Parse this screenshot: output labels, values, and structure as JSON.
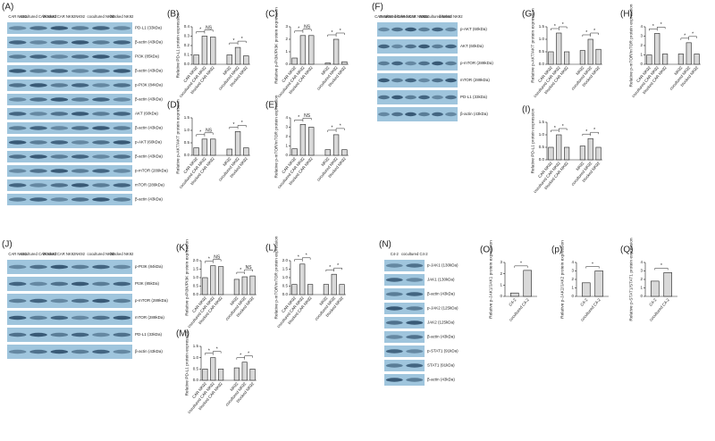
{
  "blots": [
    {
      "panel": "(A)",
      "lanes": [
        "CAR NK92",
        "cocultured CAR NK92",
        "blocked CAR NK92",
        "NK92",
        "cocultured NK92",
        "blocked NK92"
      ],
      "bands": [
        "PD-L1 (33kDa)",
        "β-actin (43kDa)",
        "PI3K (85kDa)",
        "β-actin (43kDa)",
        "p-PI3K (84kDa)",
        "β-actin (43kDa)",
        "AKT (60kDa)",
        "β-actin (43kDa)",
        "p-AKT (60kDa)",
        "β-actin (43kDa)",
        "p-mTOR (289kDa)",
        "mTOR (289kDa)",
        "β-actin (43kDa)"
      ]
    },
    {
      "panel": "(F)",
      "lanes": [
        "CAR NK92",
        "cocultured CAR NK92",
        "blocked CAR NK92",
        "NK92",
        "cocultured NK92",
        "blocked NK92"
      ],
      "bands": [
        "p-AKT (60kDa)",
        "AKT (60kDa)",
        "p-mTOR (289kDa)",
        "mTOR (289kDa)",
        "PD-L1 (33kDa)",
        "β-actin (43kDa)"
      ]
    },
    {
      "panel": "(J)",
      "lanes": [
        "CAR NK92",
        "cocultured CAR NK92",
        "blocked CAR NK92",
        "NK92",
        "cocultured NK92",
        "blocked NK92"
      ],
      "bands": [
        "p-PI3K (84kDa)",
        "PI3K (85kDa)",
        "p-mTOR (289kDa)",
        "mTOR (289kDa)",
        "PD-L1 (33kDa)",
        "β-actin (43kDa)"
      ]
    },
    {
      "panel": "(N)",
      "lanes": [
        "C4-2",
        "cocultured C4-2"
      ],
      "bands": [
        "p-JAK1 (130kDa)",
        "JAK1 (130kDa)",
        "β-actin (43kDa)",
        "p-JAK2 (125kDa)",
        "JAK2 (125kDa)",
        "β-actin (43kDa)",
        "p-STAT1 (91kDa)",
        "STAT1 (91kDa)",
        "β-actin (43kDa)"
      ]
    }
  ],
  "chart_data": [
    {
      "type": "bar",
      "panel": "(B)",
      "ylabel": "Relative PD-L1 protein expression",
      "categories": [
        "CAR NK92",
        "cocultured CAR NK92",
        "blocked CAR NK92",
        "NK92",
        "cocultured NK92",
        "blocked NK92"
      ],
      "values": [
        0.1,
        0.3,
        0.29,
        0.1,
        0.18,
        0.09
      ],
      "color": "#d9d9d9",
      "ylim": [
        0,
        0.4
      ],
      "yticks": [
        {
          "value": 0,
          "label": "0.0"
        },
        0.1,
        0.2,
        0.3,
        0.4
      ],
      "brackets": [
        {
          "text": "*",
          "from": 0,
          "to": 1
        },
        {
          "text": "NS",
          "from": 1,
          "to": 2
        },
        {
          "text": "*",
          "from": 3,
          "to": 4
        },
        {
          "text": "*",
          "from": 4,
          "to": 5
        }
      ]
    },
    {
      "type": "bar",
      "panel": "(C)",
      "ylabel": "Relative p-PI3K/PI3K protein expression",
      "categories": [
        "CAR NK92",
        "cocultured CAR NK92",
        "blocked CAR NK92",
        "NK92",
        "cocultured NK92",
        "blocked NK92"
      ],
      "values": [
        0.5,
        2.3,
        2.3,
        0.1,
        2.0,
        0.2
      ],
      "color": "#d9d9d9",
      "ylim": [
        0,
        3
      ],
      "yticks": [
        0,
        1,
        2,
        3
      ],
      "brackets": [
        {
          "text": "*",
          "from": 0,
          "to": 1
        },
        {
          "text": "NS",
          "from": 1,
          "to": 2
        },
        {
          "text": "*",
          "from": 3,
          "to": 4
        },
        {
          "text": "*",
          "from": 4,
          "to": 5
        }
      ]
    },
    {
      "type": "bar",
      "panel": "(D)",
      "ylabel": "Relative p-AKT/AKT protein expression",
      "categories": [
        "CAR NK92",
        "cocultured CAR NK92",
        "blocked CAR NK92",
        "NK92",
        "cocultured NK92",
        "blocked NK92"
      ],
      "values": [
        0.3,
        0.65,
        0.65,
        0.25,
        0.95,
        0.3
      ],
      "color": "#d9d9d9",
      "ylim": [
        0,
        1.5
      ],
      "yticks": [
        {
          "value": 0,
          "label": "0.0"
        },
        0.5,
        {
          "value": 1,
          "label": "1.0"
        },
        1.5
      ],
      "brackets": [
        {
          "text": "*",
          "from": 0,
          "to": 1
        },
        {
          "text": "NS",
          "from": 1,
          "to": 2
        },
        {
          "text": "*",
          "from": 3,
          "to": 4
        },
        {
          "text": "*",
          "from": 4,
          "to": 5
        }
      ]
    },
    {
      "type": "bar",
      "panel": "(E)",
      "ylabel": "Relative p-mTOR/mTOR protein expression",
      "categories": [
        "CAR NK92",
        "cocultured CAR NK92",
        "blocked CAR NK92",
        "NK92",
        "cocultured NK92",
        "blocked NK92"
      ],
      "values": [
        0.7,
        3.3,
        3.0,
        0.6,
        2.2,
        0.6
      ],
      "color": "#d9d9d9",
      "ylim": [
        0,
        4
      ],
      "yticks": [
        0,
        1,
        2,
        3,
        4
      ],
      "brackets": [
        {
          "text": "*",
          "from": 0,
          "to": 1
        },
        {
          "text": "NS",
          "from": 1,
          "to": 2
        },
        {
          "text": "*",
          "from": 3,
          "to": 4
        },
        {
          "text": "*",
          "from": 4,
          "to": 5
        }
      ]
    },
    {
      "type": "bar",
      "panel": "(G)",
      "ylabel": "Relative p-AKT/AKT protein expression",
      "categories": [
        "CAR NK92",
        "cocultured CAR NK92",
        "blocked CAR NK92",
        "NK92",
        "cocultured NK92",
        "blocked NK92"
      ],
      "values": [
        0.5,
        1.25,
        0.5,
        0.55,
        1.0,
        0.6
      ],
      "color": "#d9d9d9",
      "ylim": [
        0,
        1.5
      ],
      "yticks": [
        {
          "value": 0,
          "label": "0.0"
        },
        0.5,
        {
          "value": 1,
          "label": "1.0"
        },
        1.5
      ],
      "brackets": [
        {
          "text": "*",
          "from": 0,
          "to": 1
        },
        {
          "text": "*",
          "from": 1,
          "to": 2
        },
        {
          "text": "*",
          "from": 3,
          "to": 4
        },
        {
          "text": "*",
          "from": 4,
          "to": 5
        }
      ]
    },
    {
      "type": "bar",
      "panel": "(H)",
      "ylabel": "Relative p-mTOR/mTOR protein expression",
      "categories": [
        "CAR NK92",
        "cocultured CAR NK92",
        "blocked CAR NK92",
        "NK92",
        "cocultured NK92",
        "blocked NK92"
      ],
      "values": [
        1.0,
        3.3,
        1.1,
        1.1,
        2.3,
        1.1
      ],
      "color": "#d9d9d9",
      "ylim": [
        0,
        4
      ],
      "yticks": [
        0,
        1,
        2,
        3,
        4
      ],
      "brackets": [
        {
          "text": "*",
          "from": 0,
          "to": 1
        },
        {
          "text": "*",
          "from": 1,
          "to": 2
        },
        {
          "text": "*",
          "from": 3,
          "to": 4
        },
        {
          "text": "*",
          "from": 4,
          "to": 5
        }
      ]
    },
    {
      "type": "bar",
      "panel": "(I)",
      "ylabel": "Relative PD-L1 protein expression",
      "categories": [
        "CAR NK92",
        "cocultured CAR NK92",
        "blocked CAR NK92",
        "NK92",
        "cocultured NK92",
        "blocked NK92"
      ],
      "values": [
        0.5,
        1.0,
        0.5,
        0.55,
        0.85,
        0.5
      ],
      "color": "#d9d9d9",
      "ylim": [
        0,
        1.5
      ],
      "yticks": [
        {
          "value": 0,
          "label": "0.0"
        },
        0.5,
        {
          "value": 1,
          "label": "1.0"
        },
        1.5
      ],
      "brackets": [
        {
          "text": "*",
          "from": 0,
          "to": 1
        },
        {
          "text": "*",
          "from": 1,
          "to": 2
        },
        {
          "text": "*",
          "from": 3,
          "to": 4
        },
        {
          "text": "*",
          "from": 4,
          "to": 5
        }
      ]
    },
    {
      "type": "bar",
      "panel": "(K)",
      "ylabel": "Relative p-PI3K/PI3K protein expression",
      "categories": [
        "CAR NK92",
        "cocultured CAR NK92",
        "blocked CAR NK92",
        "NK92",
        "cocultured NK92",
        "blocked NK92"
      ],
      "values": [
        1.0,
        1.7,
        1.65,
        0.9,
        1.05,
        1.1
      ],
      "color": "#d9d9d9",
      "ylim": [
        0,
        2
      ],
      "yticks": [
        {
          "value": 0,
          "label": "0.0"
        },
        0.5,
        {
          "value": 1,
          "label": "1.0"
        },
        1.5,
        {
          "value": 2,
          "label": "2.0"
        }
      ],
      "brackets": [
        {
          "text": "*",
          "from": 0,
          "to": 1
        },
        {
          "text": "NS",
          "from": 1,
          "to": 2
        },
        {
          "text": "*",
          "from": 3,
          "to": 4
        },
        {
          "text": "NS",
          "from": 4,
          "to": 5
        }
      ]
    },
    {
      "type": "bar",
      "panel": "(L)",
      "ylabel": "Relative p-mTOR/mTOR protein expression",
      "categories": [
        "CAR NK92",
        "cocultured CAR NK92",
        "blocked CAR NK92",
        "NK92",
        "cocultured NK92",
        "blocked NK92"
      ],
      "values": [
        0.6,
        1.8,
        0.6,
        0.6,
        1.2,
        0.6
      ],
      "color": "#d9d9d9",
      "ylim": [
        0,
        2
      ],
      "yticks": [
        {
          "value": 0,
          "label": "0.0"
        },
        0.5,
        {
          "value": 1,
          "label": "1.0"
        },
        1.5,
        {
          "value": 2,
          "label": "2.0"
        }
      ],
      "brackets": [
        {
          "text": "*",
          "from": 0,
          "to": 1
        },
        {
          "text": "*",
          "from": 1,
          "to": 2
        },
        {
          "text": "*",
          "from": 3,
          "to": 4
        },
        {
          "text": "*",
          "from": 4,
          "to": 5
        }
      ]
    },
    {
      "type": "bar",
      "panel": "(M)",
      "ylabel": "Relative PD-L1 protein expression",
      "categories": [
        "CAR NK92",
        "cocultured CAR NK92",
        "blocked CAR NK92",
        "NK92",
        "cocultured NK92",
        "blocked NK92"
      ],
      "values": [
        0.5,
        1.0,
        0.5,
        0.55,
        0.8,
        0.5
      ],
      "color": "#d9d9d9",
      "ylim": [
        0,
        1.5
      ],
      "yticks": [
        {
          "value": 0,
          "label": "0.0"
        },
        0.5,
        {
          "value": 1,
          "label": "1.0"
        },
        1.5
      ],
      "brackets": [
        {
          "text": "*",
          "from": 0,
          "to": 1
        },
        {
          "text": "*",
          "from": 1,
          "to": 2
        },
        {
          "text": "*",
          "from": 3,
          "to": 4
        },
        {
          "text": "*",
          "from": 4,
          "to": 5
        }
      ]
    },
    {
      "type": "bar",
      "panel": "(O)",
      "ylabel": "Relative p-JAK1/JAK1 protein expression",
      "categories": [
        "C4-2",
        "cocultured C4-2"
      ],
      "values": [
        0.3,
        2.3
      ],
      "color": "#d9d9d9",
      "ylim": [
        0,
        3
      ],
      "yticks": [
        0,
        1,
        2,
        3
      ],
      "brackets": [
        {
          "text": "*",
          "from": 0,
          "to": 1
        }
      ]
    },
    {
      "type": "bar",
      "panel": "(p)",
      "ylabel": "Relative p-JAK2/JAK2 protein expression",
      "categories": [
        "C4-2",
        "cocultured C4-2"
      ],
      "values": [
        1.6,
        3.0
      ],
      "color": "#d9d9d9",
      "ylim": [
        0,
        4
      ],
      "yticks": [
        0,
        1,
        2,
        3,
        4
      ],
      "brackets": [
        {
          "text": "*",
          "from": 0,
          "to": 1
        }
      ]
    },
    {
      "type": "bar",
      "panel": "(Q)",
      "ylabel": "Relative p-STAT1/STAT1 protein expression",
      "categories": [
        "C4-2",
        "cocultured C4-2"
      ],
      "values": [
        1.8,
        2.8
      ],
      "color": "#d9d9d9",
      "ylim": [
        0,
        4
      ],
      "yticks": [
        0,
        1,
        2,
        3,
        4
      ],
      "brackets": [
        {
          "text": "*",
          "from": 0,
          "to": 1
        }
      ]
    }
  ]
}
